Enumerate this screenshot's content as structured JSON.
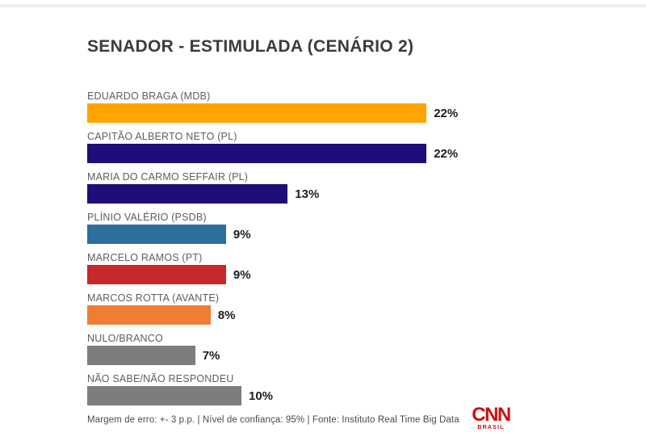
{
  "page": {
    "background_color": "#ffffff",
    "top_rule_color": "#efefef"
  },
  "header": {
    "title": "SENADOR - ESTIMULADA (CENÁRIO 2)"
  },
  "chart_data": {
    "type": "bar",
    "orientation": "horizontal",
    "title": "SENADOR - ESTIMULADA (CENÁRIO 2)",
    "xlabel": "",
    "ylabel": "",
    "unit": "%",
    "xlim": [
      0,
      24
    ],
    "grid": false,
    "legend": false,
    "categories": [
      "EDUARDO BRAGA (MDB)",
      "CAPITÃO ALBERTO NETO (PL)",
      "MARIA DO CARMO SEFFAIR (PL)",
      "PLÍNIO VALÉRIO (PSDB)",
      "MARCELO RAMOS (PT)",
      "MARCOS ROTTA (AVANTE)",
      "NULO/BRANCO",
      "NÃO SABE/NÃO RESPONDEU"
    ],
    "values": [
      22,
      22,
      13,
      9,
      9,
      8,
      7,
      10
    ],
    "rows": [
      {
        "label": "EDUARDO BRAGA (MDB)",
        "value": 22,
        "value_label": "22%",
        "color": "#ffa400"
      },
      {
        "label": "CAPITÃO ALBERTO NETO (PL)",
        "value": 22,
        "value_label": "22%",
        "color": "#1e0e78"
      },
      {
        "label": "MARIA DO CARMO SEFFAIR (PL)",
        "value": 13,
        "value_label": "13%",
        "color": "#1e0e78"
      },
      {
        "label": "PLÍNIO VALÉRIO (PSDB)",
        "value": 9,
        "value_label": "9%",
        "color": "#2d6f9d"
      },
      {
        "label": "MARCELO RAMOS (PT)",
        "value": 9,
        "value_label": "9%",
        "color": "#c5292c"
      },
      {
        "label": "MARCOS ROTTA (AVANTE)",
        "value": 8,
        "value_label": "8%",
        "color": "#ef7d33"
      },
      {
        "label": "NULO/BRANCO",
        "value": 7,
        "value_label": "7%",
        "color": "#7d7d7d"
      },
      {
        "label": "NÃO SABE/NÃO RESPONDEU",
        "value": 10,
        "value_label": "10%",
        "color": "#7d7d7d"
      }
    ]
  },
  "footer": {
    "note": "Margem de erro: +- 3 p.p. | Nível de confiança: 95% | Fonte: Instituto Real Time Big Data",
    "logo": {
      "brand": "CNN",
      "sub": "BRASIL",
      "color": "#cc0f0f"
    }
  }
}
